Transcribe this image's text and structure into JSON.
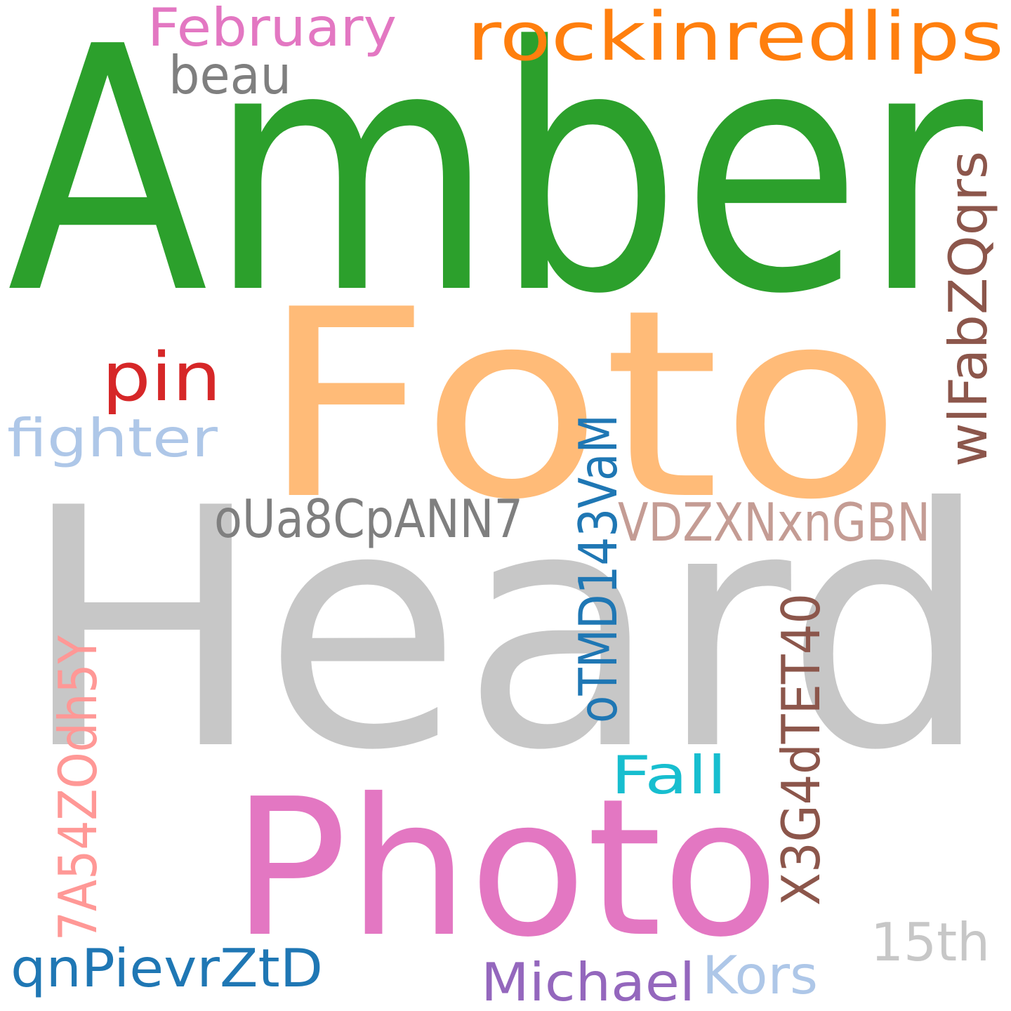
{
  "words": [
    {
      "text": "Amber",
      "color": "#2ca02c"
    },
    {
      "text": "Foto",
      "color": "#ffbb78"
    },
    {
      "text": "Heard",
      "color": "#c7c7c7"
    },
    {
      "text": "Photo",
      "color": "#e377c2"
    },
    {
      "text": "rockinredlips",
      "color": "#ff7f0e"
    },
    {
      "text": "February",
      "color": "#e377c2"
    },
    {
      "text": "beau",
      "color": "#7f7f7f"
    },
    {
      "text": "pin",
      "color": "#d62728"
    },
    {
      "text": "fighter",
      "color": "#aec7e8"
    },
    {
      "text": "oUa8CpANN7",
      "color": "#7f7f7f"
    },
    {
      "text": "VDZXNxnGBN",
      "color": "#c49c94"
    },
    {
      "text": "oTMD143VaM",
      "color": "#1f77b4"
    },
    {
      "text": "wlFabZQqrs",
      "color": "#8c564b"
    },
    {
      "text": "X3G4dTET40",
      "color": "#8c564b"
    },
    {
      "text": "7A54ZOdh5Y",
      "color": "#ff9896"
    },
    {
      "text": "Fall",
      "color": "#17becf"
    },
    {
      "text": "15th",
      "color": "#c7c7c7"
    },
    {
      "text": "qnPievrZtD",
      "color": "#1f77b4"
    },
    {
      "text": "Michael",
      "color": "#9467bd"
    },
    {
      "text": "Kors",
      "color": "#aec7e8"
    }
  ]
}
